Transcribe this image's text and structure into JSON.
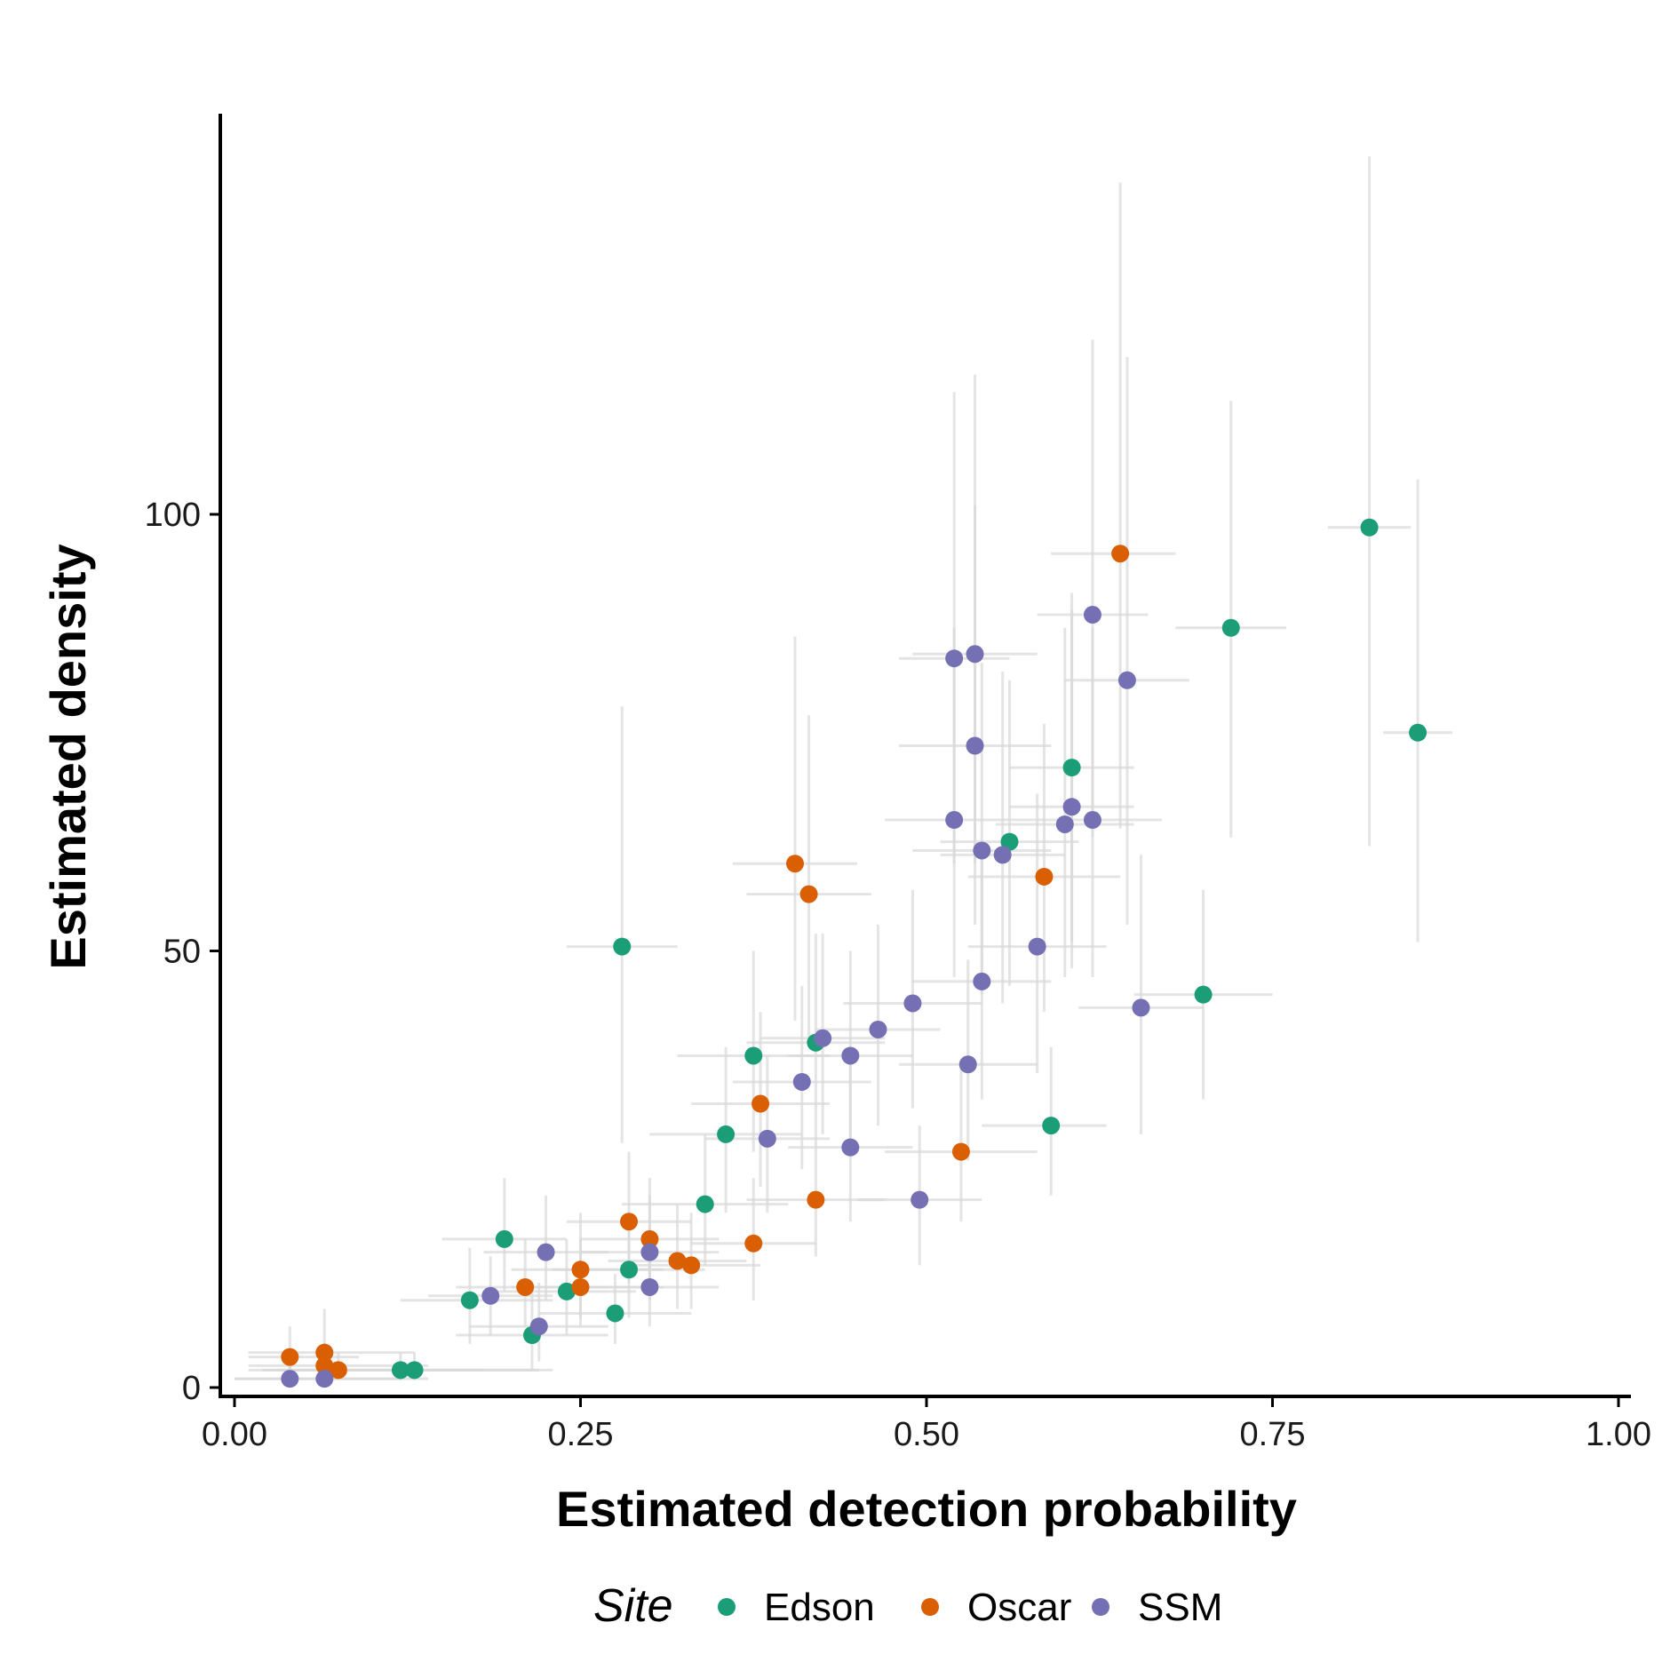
{
  "chart_data": {
    "type": "scatter",
    "xlabel": "Estimated detection probability",
    "ylabel": "Estimated density",
    "xlim": [
      0,
      1
    ],
    "ylim": [
      0,
      150
    ],
    "x_ticks": [
      "0.00",
      "0.25",
      "0.50",
      "0.75",
      "1.00"
    ],
    "y_ticks": [
      "0",
      "50",
      "100"
    ],
    "grid": false,
    "legend": {
      "title": "Site",
      "position": "bottom"
    },
    "colors": {
      "Edson": "#1b9e77",
      "Oscar": "#d95f02",
      "SSM": "#7570b3",
      "errorbar": "#d9d9d9"
    },
    "series": [
      {
        "name": "Edson",
        "points": [
          {
            "x": 0.12,
            "y": 2,
            "xlo": 0.02,
            "xhi": 0.22,
            "ylo": 1,
            "yhi": 4
          },
          {
            "x": 0.13,
            "y": 2,
            "xlo": 0.03,
            "xhi": 0.23,
            "ylo": 1,
            "yhi": 4
          },
          {
            "x": 0.17,
            "y": 10,
            "xlo": 0.12,
            "xhi": 0.23,
            "ylo": 5,
            "yhi": 16
          },
          {
            "x": 0.195,
            "y": 17,
            "xlo": 0.15,
            "xhi": 0.24,
            "ylo": 11,
            "yhi": 24
          },
          {
            "x": 0.215,
            "y": 6,
            "xlo": 0.16,
            "xhi": 0.27,
            "ylo": 2,
            "yhi": 11
          },
          {
            "x": 0.24,
            "y": 11,
            "xlo": 0.19,
            "xhi": 0.29,
            "ylo": 6,
            "yhi": 17
          },
          {
            "x": 0.275,
            "y": 8.5,
            "xlo": 0.22,
            "xhi": 0.33,
            "ylo": 5,
            "yhi": 13
          },
          {
            "x": 0.285,
            "y": 13.5,
            "xlo": 0.23,
            "xhi": 0.34,
            "ylo": 8,
            "yhi": 20
          },
          {
            "x": 0.28,
            "y": 50.5,
            "xlo": 0.24,
            "xhi": 0.32,
            "ylo": 28,
            "yhi": 78
          },
          {
            "x": 0.34,
            "y": 21,
            "xlo": 0.28,
            "xhi": 0.4,
            "ylo": 14,
            "yhi": 29
          },
          {
            "x": 0.355,
            "y": 29,
            "xlo": 0.3,
            "xhi": 0.41,
            "ylo": 20,
            "yhi": 39
          },
          {
            "x": 0.375,
            "y": 38,
            "xlo": 0.32,
            "xhi": 0.43,
            "ylo": 27,
            "yhi": 50
          },
          {
            "x": 0.42,
            "y": 39.5,
            "xlo": 0.37,
            "xhi": 0.47,
            "ylo": 29,
            "yhi": 52
          },
          {
            "x": 0.56,
            "y": 62.5,
            "xlo": 0.51,
            "xhi": 0.61,
            "ylo": 46,
            "yhi": 81
          },
          {
            "x": 0.59,
            "y": 30,
            "xlo": 0.54,
            "xhi": 0.63,
            "ylo": 22,
            "yhi": 39
          },
          {
            "x": 0.605,
            "y": 71,
            "xlo": 0.56,
            "xhi": 0.65,
            "ylo": 51,
            "yhi": 91
          },
          {
            "x": 0.7,
            "y": 45,
            "xlo": 0.65,
            "xhi": 0.75,
            "ylo": 33,
            "yhi": 57
          },
          {
            "x": 0.72,
            "y": 87,
            "xlo": 0.68,
            "xhi": 0.76,
            "ylo": 63,
            "yhi": 113
          },
          {
            "x": 0.82,
            "y": 98.5,
            "xlo": 0.79,
            "xhi": 0.85,
            "ylo": 62,
            "yhi": 141
          },
          {
            "x": 0.855,
            "y": 75,
            "xlo": 0.83,
            "xhi": 0.88,
            "ylo": 51,
            "yhi": 104
          }
        ]
      },
      {
        "name": "Oscar",
        "points": [
          {
            "x": 0.04,
            "y": 3.5,
            "xlo": 0.01,
            "xhi": 0.09,
            "ylo": 1,
            "yhi": 7
          },
          {
            "x": 0.065,
            "y": 4,
            "xlo": 0.01,
            "xhi": 0.13,
            "ylo": 1,
            "yhi": 9
          },
          {
            "x": 0.065,
            "y": 2.5,
            "xlo": 0.01,
            "xhi": 0.14,
            "ylo": 1,
            "yhi": 5
          },
          {
            "x": 0.075,
            "y": 2,
            "xlo": 0.01,
            "xhi": 0.18,
            "ylo": 1,
            "yhi": 4
          },
          {
            "x": 0.21,
            "y": 11.5,
            "xlo": 0.16,
            "xhi": 0.27,
            "ylo": 7,
            "yhi": 17
          },
          {
            "x": 0.25,
            "y": 11.5,
            "xlo": 0.2,
            "xhi": 0.31,
            "ylo": 7,
            "yhi": 17
          },
          {
            "x": 0.25,
            "y": 13.5,
            "xlo": 0.2,
            "xhi": 0.31,
            "ylo": 8,
            "yhi": 20
          },
          {
            "x": 0.285,
            "y": 19,
            "xlo": 0.24,
            "xhi": 0.33,
            "ylo": 12,
            "yhi": 27
          },
          {
            "x": 0.3,
            "y": 17,
            "xlo": 0.25,
            "xhi": 0.35,
            "ylo": 11,
            "yhi": 24
          },
          {
            "x": 0.32,
            "y": 14.5,
            "xlo": 0.27,
            "xhi": 0.37,
            "ylo": 9,
            "yhi": 21
          },
          {
            "x": 0.33,
            "y": 14,
            "xlo": 0.28,
            "xhi": 0.38,
            "ylo": 9,
            "yhi": 20
          },
          {
            "x": 0.375,
            "y": 16.5,
            "xlo": 0.33,
            "xhi": 0.42,
            "ylo": 10,
            "yhi": 24
          },
          {
            "x": 0.38,
            "y": 32.5,
            "xlo": 0.33,
            "xhi": 0.43,
            "ylo": 23,
            "yhi": 43
          },
          {
            "x": 0.405,
            "y": 60,
            "xlo": 0.36,
            "xhi": 0.45,
            "ylo": 42,
            "yhi": 86
          },
          {
            "x": 0.415,
            "y": 56.5,
            "xlo": 0.37,
            "xhi": 0.46,
            "ylo": 40,
            "yhi": 77
          },
          {
            "x": 0.42,
            "y": 21.5,
            "xlo": 0.37,
            "xhi": 0.47,
            "ylo": 15,
            "yhi": 29
          },
          {
            "x": 0.525,
            "y": 27,
            "xlo": 0.47,
            "xhi": 0.58,
            "ylo": 19,
            "yhi": 37
          },
          {
            "x": 0.585,
            "y": 58.5,
            "xlo": 0.53,
            "xhi": 0.64,
            "ylo": 43,
            "yhi": 76
          },
          {
            "x": 0.64,
            "y": 95.5,
            "xlo": 0.59,
            "xhi": 0.68,
            "ylo": 64,
            "yhi": 138
          }
        ]
      },
      {
        "name": "SSM",
        "points": [
          {
            "x": 0.04,
            "y": 1,
            "xlo": 0.0,
            "xhi": 0.12,
            "ylo": 0,
            "yhi": 3
          },
          {
            "x": 0.065,
            "y": 1,
            "xlo": 0.0,
            "xhi": 0.14,
            "ylo": 0,
            "yhi": 3
          },
          {
            "x": 0.185,
            "y": 10.5,
            "xlo": 0.14,
            "xhi": 0.23,
            "ylo": 6,
            "yhi": 15
          },
          {
            "x": 0.22,
            "y": 7,
            "xlo": 0.17,
            "xhi": 0.27,
            "ylo": 3,
            "yhi": 12
          },
          {
            "x": 0.225,
            "y": 15.5,
            "xlo": 0.18,
            "xhi": 0.27,
            "ylo": 10,
            "yhi": 22
          },
          {
            "x": 0.3,
            "y": 11.5,
            "xlo": 0.25,
            "xhi": 0.35,
            "ylo": 7,
            "yhi": 17
          },
          {
            "x": 0.3,
            "y": 15.5,
            "xlo": 0.25,
            "xhi": 0.35,
            "ylo": 10,
            "yhi": 22
          },
          {
            "x": 0.385,
            "y": 28.5,
            "xlo": 0.34,
            "xhi": 0.43,
            "ylo": 20,
            "yhi": 38
          },
          {
            "x": 0.41,
            "y": 35,
            "xlo": 0.36,
            "xhi": 0.46,
            "ylo": 25,
            "yhi": 46
          },
          {
            "x": 0.425,
            "y": 40,
            "xlo": 0.38,
            "xhi": 0.47,
            "ylo": 29,
            "yhi": 52
          },
          {
            "x": 0.445,
            "y": 27.5,
            "xlo": 0.4,
            "xhi": 0.49,
            "ylo": 19,
            "yhi": 37
          },
          {
            "x": 0.445,
            "y": 38,
            "xlo": 0.4,
            "xhi": 0.49,
            "ylo": 27,
            "yhi": 50
          },
          {
            "x": 0.465,
            "y": 41,
            "xlo": 0.42,
            "xhi": 0.51,
            "ylo": 30,
            "yhi": 53
          },
          {
            "x": 0.49,
            "y": 44,
            "xlo": 0.44,
            "xhi": 0.54,
            "ylo": 32,
            "yhi": 57
          },
          {
            "x": 0.495,
            "y": 21.5,
            "xlo": 0.45,
            "xhi": 0.54,
            "ylo": 14,
            "yhi": 30
          },
          {
            "x": 0.52,
            "y": 83.5,
            "xlo": 0.48,
            "xhi": 0.56,
            "ylo": 60,
            "yhi": 114
          },
          {
            "x": 0.52,
            "y": 65,
            "xlo": 0.47,
            "xhi": 0.57,
            "ylo": 47,
            "yhi": 87
          },
          {
            "x": 0.53,
            "y": 37,
            "xlo": 0.48,
            "xhi": 0.58,
            "ylo": 26,
            "yhi": 49
          },
          {
            "x": 0.535,
            "y": 84,
            "xlo": 0.49,
            "xhi": 0.58,
            "ylo": 60,
            "yhi": 116
          },
          {
            "x": 0.535,
            "y": 73.5,
            "xlo": 0.48,
            "xhi": 0.59,
            "ylo": 53,
            "yhi": 101
          },
          {
            "x": 0.54,
            "y": 61.5,
            "xlo": 0.49,
            "xhi": 0.59,
            "ylo": 45,
            "yhi": 83
          },
          {
            "x": 0.54,
            "y": 46.5,
            "xlo": 0.49,
            "xhi": 0.59,
            "ylo": 33,
            "yhi": 62
          },
          {
            "x": 0.555,
            "y": 61,
            "xlo": 0.51,
            "xhi": 0.6,
            "ylo": 44,
            "yhi": 82
          },
          {
            "x": 0.58,
            "y": 50.5,
            "xlo": 0.53,
            "xhi": 0.63,
            "ylo": 36,
            "yhi": 68
          },
          {
            "x": 0.6,
            "y": 64.5,
            "xlo": 0.55,
            "xhi": 0.65,
            "ylo": 47,
            "yhi": 87
          },
          {
            "x": 0.605,
            "y": 66.5,
            "xlo": 0.56,
            "xhi": 0.65,
            "ylo": 48,
            "yhi": 89
          },
          {
            "x": 0.62,
            "y": 65,
            "xlo": 0.57,
            "xhi": 0.67,
            "ylo": 47,
            "yhi": 87
          },
          {
            "x": 0.62,
            "y": 88.5,
            "xlo": 0.58,
            "xhi": 0.66,
            "ylo": 63,
            "yhi": 120
          },
          {
            "x": 0.645,
            "y": 81,
            "xlo": 0.6,
            "xhi": 0.69,
            "ylo": 53,
            "yhi": 118
          },
          {
            "x": 0.655,
            "y": 43.5,
            "xlo": 0.61,
            "xhi": 0.7,
            "ylo": 29,
            "yhi": 61
          }
        ]
      }
    ]
  }
}
